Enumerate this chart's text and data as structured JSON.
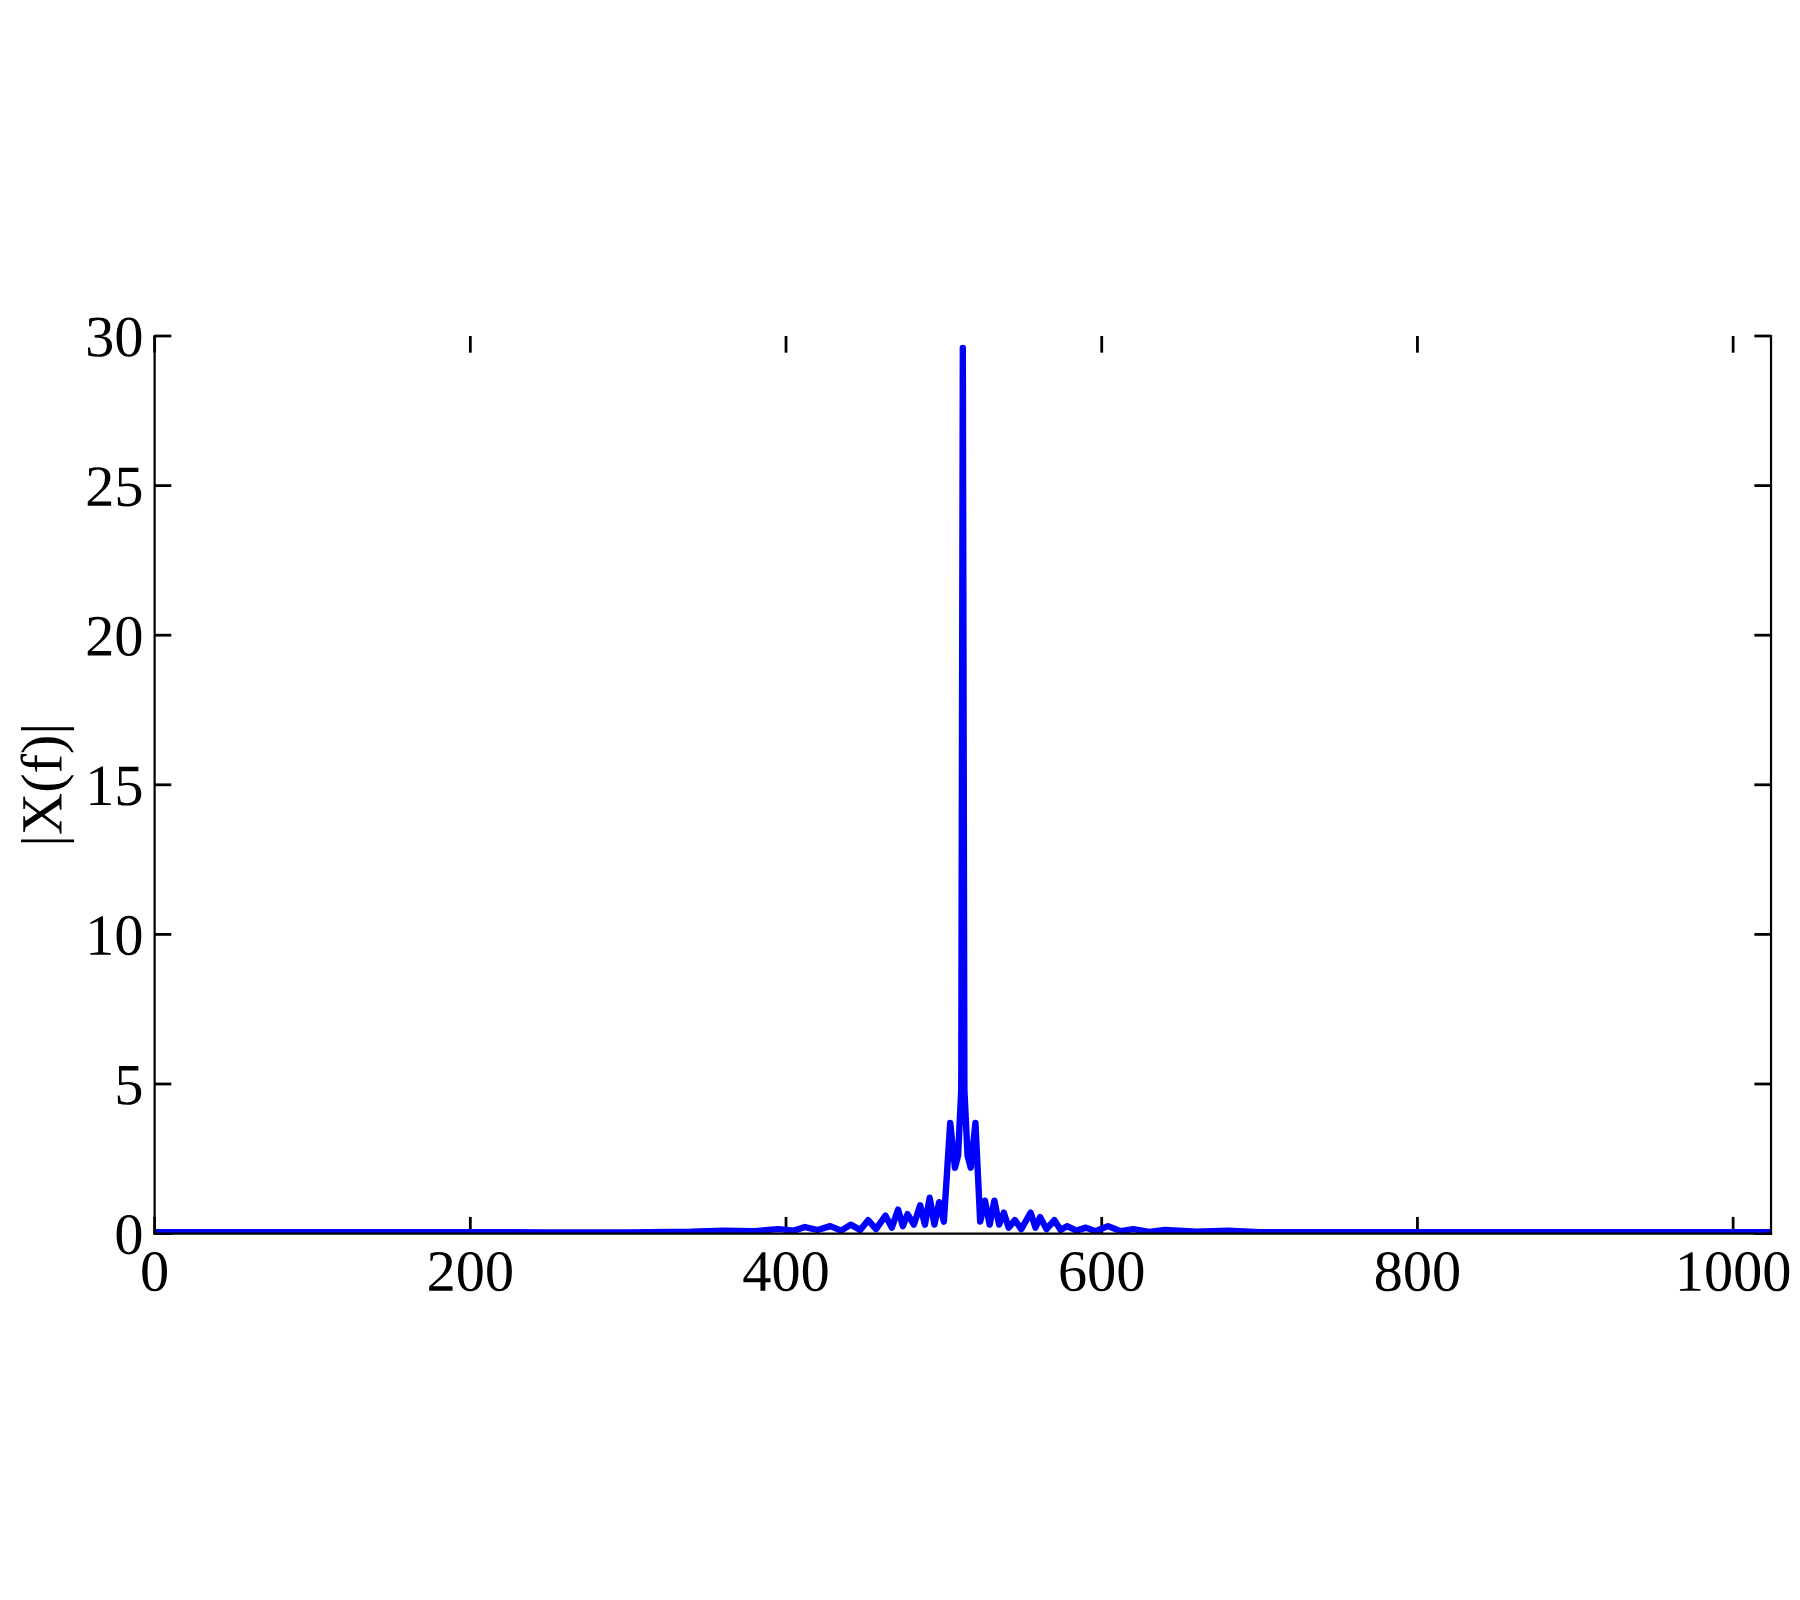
{
  "chart_data": {
    "type": "line",
    "ylabel": "|X(f)|",
    "x": [
      0,
      100,
      200,
      250,
      300,
      340,
      360,
      380,
      395,
      405,
      412,
      420,
      428,
      435,
      441,
      447,
      452,
      457,
      463,
      467,
      471,
      474,
      477,
      481,
      485,
      488,
      491,
      494,
      497,
      500,
      504,
      507,
      509,
      511,
      512,
      513,
      515,
      517,
      520,
      523,
      526,
      529,
      532,
      535,
      538,
      541,
      545,
      549,
      555,
      558,
      561,
      565,
      570,
      574,
      578,
      584,
      590,
      596,
      604,
      612,
      620,
      630,
      640,
      660,
      680,
      700,
      800,
      900,
      1023
    ],
    "series": [
      {
        "color": "#0000ff",
        "values": [
          0.05,
          0.05,
          0.05,
          0.04,
          0.04,
          0.06,
          0.1,
          0.08,
          0.15,
          0.1,
          0.22,
          0.12,
          0.25,
          0.1,
          0.3,
          0.12,
          0.45,
          0.15,
          0.6,
          0.2,
          0.8,
          0.25,
          0.65,
          0.3,
          0.95,
          0.3,
          1.2,
          0.3,
          1.05,
          0.4,
          3.7,
          2.2,
          2.6,
          4.8,
          29.6,
          4.8,
          2.6,
          2.2,
          3.7,
          0.4,
          1.1,
          0.3,
          1.1,
          0.3,
          0.7,
          0.2,
          0.45,
          0.15,
          0.7,
          0.2,
          0.55,
          0.15,
          0.45,
          0.12,
          0.25,
          0.1,
          0.2,
          0.08,
          0.25,
          0.08,
          0.15,
          0.06,
          0.12,
          0.06,
          0.1,
          0.05,
          0.05,
          0.05,
          0.05
        ]
      }
    ],
    "xlim": [
      0,
      1024
    ],
    "ylim": [
      0,
      30
    ],
    "xticks": [
      0,
      200,
      400,
      600,
      800,
      1000
    ],
    "yticks": [
      0,
      5,
      10,
      15,
      20,
      25,
      30
    ],
    "line_style": "solid"
  }
}
